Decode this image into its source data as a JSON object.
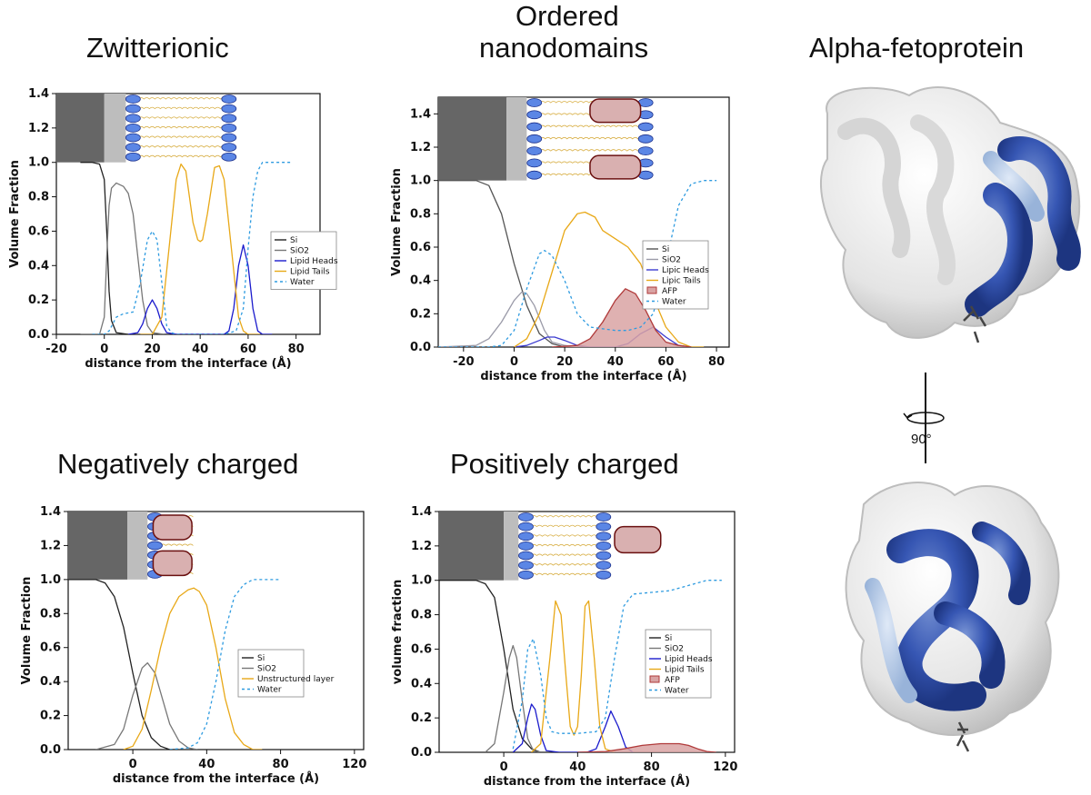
{
  "titles": {
    "zwitterionic": "Zwitterionic",
    "ordered_line1": "Ordered",
    "ordered_line2": "nanodomains",
    "afp": "Alpha-fetoprotein",
    "negative": "Negatively charged",
    "positive": "Positively charged"
  },
  "rotation_label": "90°",
  "colors": {
    "si": "#222222",
    "sio2": "#777777",
    "heads": "#1a1acc",
    "tails": "#e8a817",
    "water": "#2e9be0",
    "afp_fill": "#d9a3a3",
    "afp_edge": "#b03a3a",
    "protein_blue": "#2c4fa8"
  },
  "chart_data": [
    {
      "id": "zwitterionic",
      "type": "line",
      "xlabel": "distance from the interface (Å)",
      "ylabel": "Volume Fraction",
      "xlim": [
        -20,
        90
      ],
      "ylim": [
        0,
        1.4
      ],
      "xticks": [
        -20,
        0,
        20,
        40,
        60,
        80
      ],
      "yticks": [
        0.0,
        0.2,
        0.4,
        0.6,
        0.8,
        1.0,
        1.2,
        1.4
      ],
      "legend": "right",
      "series": [
        {
          "name": "Si",
          "color": "#222222",
          "dash": "",
          "x": [
            -10,
            -5,
            -2,
            0,
            1,
            2,
            3,
            5,
            10
          ],
          "y": [
            1.0,
            1.0,
            0.99,
            0.9,
            0.6,
            0.25,
            0.08,
            0.01,
            0.0
          ]
        },
        {
          "name": "SiO2",
          "color": "#777777",
          "dash": "",
          "x": [
            -10,
            -2,
            0,
            1,
            2,
            3,
            5,
            8,
            10,
            12,
            14,
            16,
            18,
            20,
            25
          ],
          "y": [
            0,
            0,
            0.1,
            0.45,
            0.75,
            0.85,
            0.88,
            0.86,
            0.82,
            0.7,
            0.45,
            0.2,
            0.05,
            0.01,
            0
          ]
        },
        {
          "name": "Lipid Heads",
          "color": "#1a1acc",
          "dash": "",
          "x": [
            10,
            14,
            16,
            18,
            20,
            22,
            24,
            26,
            30,
            40,
            50,
            52,
            54,
            56,
            58,
            60,
            62,
            64,
            66,
            70
          ],
          "y": [
            0,
            0.01,
            0.06,
            0.15,
            0.2,
            0.15,
            0.06,
            0.01,
            0,
            0,
            0,
            0.02,
            0.15,
            0.4,
            0.52,
            0.4,
            0.15,
            0.02,
            0,
            0
          ]
        },
        {
          "name": "Lipid Tails",
          "color": "#e8a817",
          "dash": "",
          "x": [
            15,
            20,
            24,
            27,
            30,
            32,
            34,
            37,
            39,
            40,
            41,
            43,
            46,
            48,
            50,
            53,
            56,
            58,
            60,
            65
          ],
          "y": [
            0,
            0,
            0.1,
            0.5,
            0.9,
            0.99,
            0.95,
            0.65,
            0.55,
            0.54,
            0.55,
            0.7,
            0.97,
            0.98,
            0.9,
            0.5,
            0.1,
            0.02,
            0,
            0
          ]
        },
        {
          "name": "Water",
          "color": "#2e9be0",
          "dash": "3,3",
          "x": [
            -5,
            0,
            2,
            5,
            8,
            12,
            15,
            18,
            20,
            22,
            24,
            26,
            28,
            30,
            40,
            50,
            55,
            58,
            60,
            62,
            64,
            66,
            68,
            70,
            78
          ],
          "y": [
            0,
            0,
            0.02,
            0.1,
            0.12,
            0.13,
            0.3,
            0.55,
            0.6,
            0.55,
            0.3,
            0.05,
            0.01,
            0,
            0,
            0,
            0.02,
            0.15,
            0.5,
            0.8,
            0.95,
            1.0,
            1.0,
            1.0,
            1.0
          ]
        }
      ]
    },
    {
      "id": "ordered",
      "type": "line",
      "xlabel": "distance from the interface (Å)",
      "ylabel": "Volume Fraction",
      "xlim": [
        -30,
        85
      ],
      "ylim": [
        0,
        1.5
      ],
      "xticks": [
        -20,
        0,
        20,
        40,
        60,
        80
      ],
      "yticks": [
        0.0,
        0.2,
        0.4,
        0.6,
        0.8,
        1.0,
        1.2,
        1.4
      ],
      "legend": "right",
      "series": [
        {
          "name": "Si",
          "color": "#555555",
          "dash": "",
          "x": [
            -30,
            -15,
            -10,
            -5,
            0,
            5,
            10,
            15,
            20
          ],
          "y": [
            1.0,
            1.0,
            0.97,
            0.8,
            0.5,
            0.25,
            0.08,
            0.02,
            0
          ]
        },
        {
          "name": "SiO2",
          "color": "#9a9aa8",
          "dash": "",
          "x": [
            -30,
            -15,
            -10,
            -5,
            0,
            3,
            5,
            8,
            12,
            15,
            20,
            25
          ],
          "y": [
            0,
            0.01,
            0.05,
            0.15,
            0.28,
            0.33,
            0.32,
            0.25,
            0.1,
            0.03,
            0.01,
            0
          ]
        },
        {
          "name": "Lipic Heads",
          "color": "#3a3ad0",
          "dash": "",
          "x": [
            0,
            5,
            10,
            13,
            16,
            20,
            25,
            30,
            40,
            45,
            50,
            55,
            60,
            65,
            70
          ],
          "y": [
            0,
            0.01,
            0.04,
            0.06,
            0.06,
            0.04,
            0.01,
            0,
            0,
            0.02,
            0.08,
            0.12,
            0.06,
            0.01,
            0
          ]
        },
        {
          "name": "Lipic Tails",
          "color": "#e8a817",
          "dash": "",
          "x": [
            0,
            5,
            10,
            15,
            20,
            25,
            28,
            32,
            35,
            40,
            45,
            50,
            55,
            60,
            65,
            70,
            75
          ],
          "y": [
            0,
            0.05,
            0.2,
            0.45,
            0.7,
            0.8,
            0.81,
            0.78,
            0.7,
            0.65,
            0.6,
            0.5,
            0.3,
            0.12,
            0.03,
            0,
            0
          ]
        },
        {
          "name": "AFP",
          "color": "#b03a3a",
          "dash": "",
          "fill": "#d9a3a3",
          "x": [
            15,
            25,
            30,
            35,
            40,
            44,
            48,
            52,
            56,
            60,
            65,
            70
          ],
          "y": [
            0,
            0.01,
            0.05,
            0.15,
            0.28,
            0.35,
            0.32,
            0.22,
            0.1,
            0.03,
            0.01,
            0
          ]
        },
        {
          "name": "Water",
          "color": "#2e9be0",
          "dash": "3,3",
          "x": [
            -30,
            -10,
            -5,
            0,
            5,
            10,
            12,
            15,
            20,
            25,
            30,
            40,
            45,
            50,
            55,
            60,
            65,
            70,
            75,
            80
          ],
          "y": [
            0,
            0,
            0.01,
            0.1,
            0.35,
            0.56,
            0.58,
            0.55,
            0.4,
            0.2,
            0.12,
            0.1,
            0.1,
            0.12,
            0.2,
            0.5,
            0.85,
            0.98,
            1.0,
            1.0
          ]
        }
      ]
    },
    {
      "id": "negative",
      "type": "line",
      "xlabel": "distance from the interface (Å)",
      "ylabel": "Volume Fraction",
      "xlim": [
        -35,
        125
      ],
      "ylim": [
        0,
        1.4
      ],
      "xticks": [
        0,
        40,
        80,
        120
      ],
      "yticks": [
        0.0,
        0.2,
        0.4,
        0.6,
        0.8,
        1.0,
        1.2,
        1.4
      ],
      "legend": "right",
      "series": [
        {
          "name": "Si",
          "color": "#222222",
          "dash": "",
          "x": [
            -35,
            -20,
            -15,
            -10,
            -5,
            0,
            5,
            10,
            15,
            20,
            25
          ],
          "y": [
            1.0,
            1.0,
            0.98,
            0.9,
            0.72,
            0.45,
            0.2,
            0.07,
            0.02,
            0,
            0
          ]
        },
        {
          "name": "SiO2",
          "color": "#777777",
          "dash": "",
          "x": [
            -20,
            -10,
            -5,
            0,
            5,
            8,
            12,
            16,
            20,
            25,
            30,
            35
          ],
          "y": [
            0,
            0.03,
            0.12,
            0.32,
            0.48,
            0.51,
            0.45,
            0.3,
            0.15,
            0.05,
            0.01,
            0
          ]
        },
        {
          "name": "Unstructured layer",
          "color": "#e8a817",
          "dash": "",
          "x": [
            -5,
            0,
            5,
            10,
            15,
            20,
            25,
            30,
            33,
            36,
            40,
            45,
            50,
            55,
            60,
            65,
            70
          ],
          "y": [
            0,
            0.02,
            0.12,
            0.35,
            0.6,
            0.8,
            0.9,
            0.94,
            0.95,
            0.93,
            0.85,
            0.6,
            0.3,
            0.1,
            0.03,
            0,
            0
          ]
        },
        {
          "name": "Water",
          "color": "#2e9be0",
          "dash": "3,3",
          "x": [
            20,
            30,
            35,
            40,
            45,
            50,
            55,
            60,
            65,
            70,
            75,
            80
          ],
          "y": [
            0,
            0.01,
            0.04,
            0.15,
            0.4,
            0.7,
            0.9,
            0.97,
            1.0,
            1.0,
            1.0,
            1.0
          ]
        }
      ]
    },
    {
      "id": "positive",
      "type": "line",
      "xlabel": "distance from the interface (Å)",
      "ylabel": "volume fraction",
      "xlim": [
        -35,
        125
      ],
      "ylim": [
        0,
        1.4
      ],
      "xticks": [
        0,
        40,
        80,
        120
      ],
      "yticks": [
        0.0,
        0.2,
        0.4,
        0.6,
        0.8,
        1.0,
        1.2,
        1.4
      ],
      "legend": "right",
      "series": [
        {
          "name": "Si",
          "color": "#222222",
          "dash": "",
          "x": [
            -35,
            -15,
            -10,
            -5,
            0,
            5,
            10,
            15,
            20
          ],
          "y": [
            1.0,
            1.0,
            0.98,
            0.9,
            0.6,
            0.25,
            0.08,
            0.02,
            0
          ]
        },
        {
          "name": "SiO2",
          "color": "#777777",
          "dash": "",
          "x": [
            -10,
            -5,
            0,
            3,
            5,
            7,
            10,
            13,
            16,
            20
          ],
          "y": [
            0,
            0.05,
            0.35,
            0.55,
            0.62,
            0.55,
            0.3,
            0.08,
            0.01,
            0
          ]
        },
        {
          "name": "Lipid Heads",
          "color": "#1a1acc",
          "dash": "",
          "x": [
            5,
            10,
            13,
            15,
            17,
            20,
            23,
            30,
            45,
            50,
            55,
            58,
            62,
            66,
            70
          ],
          "y": [
            0,
            0.05,
            0.2,
            0.28,
            0.25,
            0.1,
            0.01,
            0,
            0,
            0.02,
            0.15,
            0.24,
            0.15,
            0.03,
            0
          ]
        },
        {
          "name": "Lipid Tails",
          "color": "#e8a817",
          "dash": "",
          "x": [
            15,
            20,
            25,
            28,
            31,
            34,
            36,
            38,
            40,
            42,
            44,
            46,
            49,
            52,
            55,
            60
          ],
          "y": [
            0,
            0.05,
            0.55,
            0.88,
            0.8,
            0.4,
            0.15,
            0.1,
            0.15,
            0.45,
            0.85,
            0.88,
            0.55,
            0.15,
            0.02,
            0
          ]
        },
        {
          "name": "AFP",
          "color": "#b03a3a",
          "dash": "",
          "fill": "#d9a3a3",
          "x": [
            40,
            55,
            65,
            75,
            85,
            95,
            100,
            105,
            110,
            115
          ],
          "y": [
            0,
            0.005,
            0.02,
            0.04,
            0.05,
            0.05,
            0.04,
            0.02,
            0.005,
            0
          ]
        },
        {
          "name": "Water",
          "color": "#2e9be0",
          "dash": "3,3",
          "x": [
            5,
            10,
            13,
            16,
            20,
            23,
            26,
            30,
            40,
            50,
            55,
            60,
            65,
            70,
            80,
            90,
            100,
            110,
            118
          ],
          "y": [
            0.02,
            0.3,
            0.6,
            0.66,
            0.45,
            0.2,
            0.12,
            0.11,
            0.11,
            0.12,
            0.2,
            0.55,
            0.85,
            0.92,
            0.93,
            0.94,
            0.97,
            1.0,
            1.0
          ]
        }
      ]
    }
  ]
}
